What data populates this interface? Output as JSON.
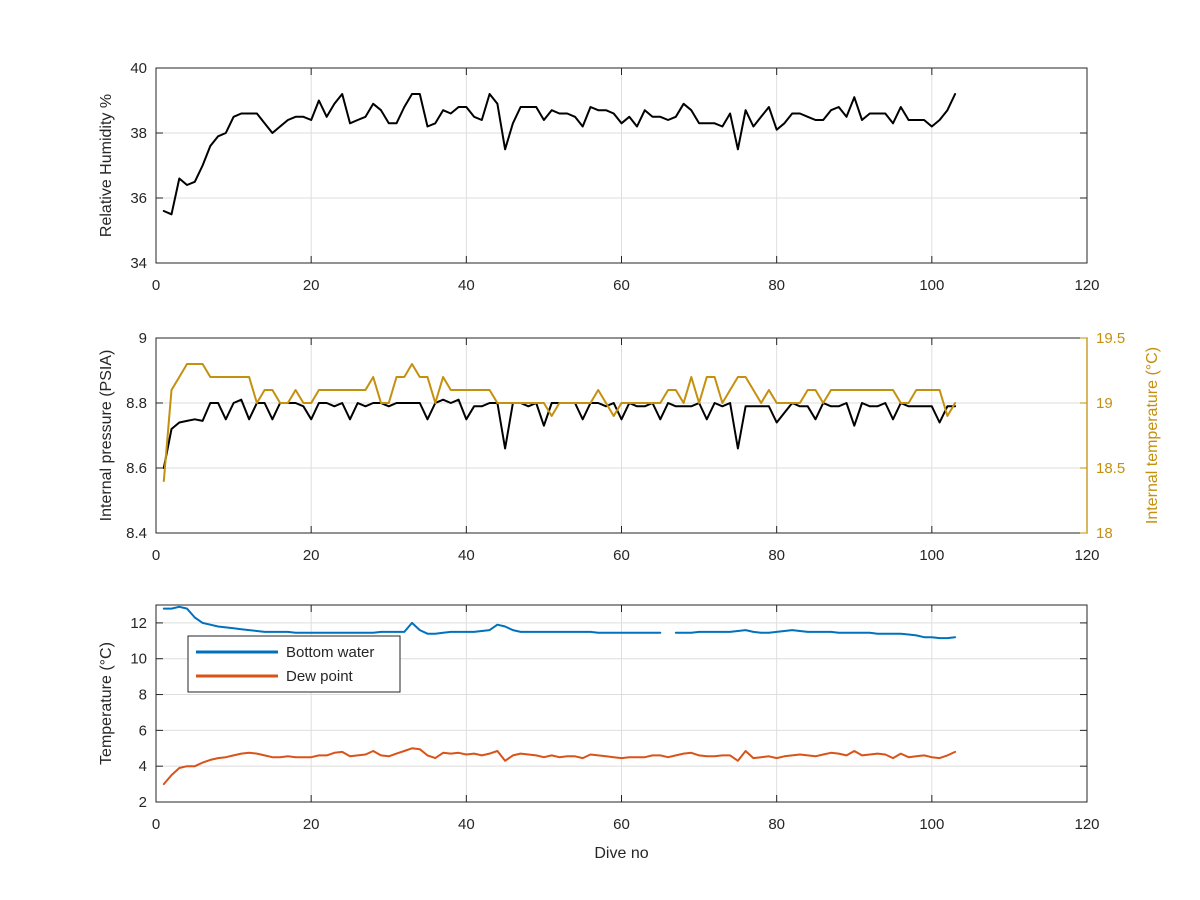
{
  "chart_data": [
    {
      "type": "line",
      "title": "",
      "xlabel": "",
      "ylabel": "Relative Humidity %",
      "xlim": [
        0,
        120
      ],
      "ylim": [
        34,
        40
      ],
      "xticks": [
        0,
        20,
        40,
        60,
        80,
        100,
        120
      ],
      "yticks": [
        34,
        36,
        38,
        40
      ],
      "grid": true,
      "series": [
        {
          "color": "#000000",
          "x": [
            1,
            2,
            3,
            4,
            5,
            6,
            7,
            8,
            9,
            10,
            11,
            12,
            13,
            14,
            15,
            16,
            17,
            18,
            19,
            20,
            21,
            22,
            23,
            24,
            25,
            26,
            27,
            28,
            29,
            30,
            31,
            32,
            33,
            34,
            35,
            36,
            37,
            38,
            39,
            40,
            41,
            42,
            43,
            44,
            45,
            46,
            47,
            48,
            49,
            50,
            51,
            52,
            53,
            54,
            55,
            56,
            57,
            58,
            59,
            60,
            61,
            62,
            63,
            64,
            65,
            66,
            67,
            68,
            69,
            70,
            71,
            72,
            73,
            74,
            75,
            76,
            77,
            78,
            79,
            80,
            81,
            82,
            83,
            84,
            85,
            86,
            87,
            88,
            89,
            90,
            91,
            92,
            93,
            94,
            95,
            96,
            97,
            98,
            99,
            100,
            101,
            102,
            103
          ],
          "values": [
            35.6,
            35.5,
            36.6,
            36.4,
            36.5,
            37.0,
            37.6,
            37.9,
            38.0,
            38.5,
            38.6,
            38.6,
            38.6,
            38.3,
            38.0,
            38.2,
            38.4,
            38.5,
            38.5,
            38.4,
            39.0,
            38.5,
            38.9,
            39.2,
            38.3,
            38.4,
            38.5,
            38.9,
            38.7,
            38.3,
            38.3,
            38.8,
            39.2,
            39.2,
            38.2,
            38.3,
            38.7,
            38.6,
            38.8,
            38.8,
            38.5,
            38.4,
            39.2,
            38.9,
            37.5,
            38.3,
            38.8,
            38.8,
            38.8,
            38.4,
            38.7,
            38.6,
            38.6,
            38.5,
            38.2,
            38.8,
            38.7,
            38.7,
            38.6,
            38.3,
            38.5,
            38.2,
            38.7,
            38.5,
            38.5,
            38.4,
            38.5,
            38.9,
            38.7,
            38.3,
            38.3,
            38.3,
            38.2,
            38.6,
            37.5,
            38.7,
            38.2,
            38.5,
            38.8,
            38.1,
            38.3,
            38.6,
            38.6,
            38.5,
            38.4,
            38.4,
            38.7,
            38.8,
            38.5,
            39.1,
            38.4,
            38.6,
            38.6,
            38.6,
            38.3,
            38.8,
            38.4,
            38.4,
            38.4,
            38.2,
            38.4,
            38.7,
            39.2
          ]
        }
      ]
    },
    {
      "type": "line",
      "title": "",
      "xlabel": "",
      "ylabel": "Internal pressure (PSIA)",
      "y2label": "Internal temperature (°C)",
      "xlim": [
        0,
        120
      ],
      "ylim": [
        8.4,
        9
      ],
      "y2lim": [
        18,
        19.5
      ],
      "xticks": [
        0,
        20,
        40,
        60,
        80,
        100,
        120
      ],
      "yticks": [
        8.4,
        8.6,
        8.8,
        9
      ],
      "y2ticks": [
        18,
        18.5,
        19,
        19.5
      ],
      "y2ticklabels": [
        "18",
        "18.5",
        "19",
        "19.5"
      ],
      "grid": true,
      "series": [
        {
          "axis": "left",
          "color": "#000000",
          "x": [
            1,
            2,
            3,
            4,
            5,
            6,
            7,
            8,
            9,
            10,
            11,
            12,
            13,
            14,
            15,
            16,
            17,
            18,
            19,
            20,
            21,
            22,
            23,
            24,
            25,
            26,
            27,
            28,
            29,
            30,
            31,
            32,
            33,
            34,
            35,
            36,
            37,
            38,
            39,
            40,
            41,
            42,
            43,
            44,
            45,
            46,
            47,
            48,
            49,
            50,
            51,
            52,
            53,
            54,
            55,
            56,
            57,
            58,
            59,
            60,
            61,
            62,
            63,
            64,
            65,
            66,
            67,
            68,
            69,
            70,
            71,
            72,
            73,
            74,
            75,
            76,
            77,
            78,
            79,
            80,
            81,
            82,
            83,
            84,
            85,
            86,
            87,
            88,
            89,
            90,
            91,
            92,
            93,
            94,
            95,
            96,
            97,
            98,
            99,
            100,
            101,
            102,
            103
          ],
          "values": [
            8.6,
            8.72,
            8.74,
            8.745,
            8.75,
            8.745,
            8.8,
            8.8,
            8.75,
            8.8,
            8.81,
            8.75,
            8.8,
            8.8,
            8.75,
            8.8,
            8.8,
            8.8,
            8.79,
            8.75,
            8.8,
            8.8,
            8.79,
            8.8,
            8.75,
            8.8,
            8.79,
            8.8,
            8.8,
            8.79,
            8.8,
            8.8,
            8.8,
            8.8,
            8.75,
            8.8,
            8.81,
            8.8,
            8.81,
            8.75,
            8.79,
            8.79,
            8.8,
            8.8,
            8.66,
            8.8,
            8.8,
            8.79,
            8.8,
            8.73,
            8.8,
            8.8,
            8.8,
            8.8,
            8.75,
            8.8,
            8.8,
            8.79,
            8.8,
            8.75,
            8.8,
            8.79,
            8.79,
            8.8,
            8.75,
            8.8,
            8.79,
            8.79,
            8.79,
            8.8,
            8.75,
            8.8,
            8.79,
            8.8,
            8.66,
            8.79,
            8.79,
            8.79,
            8.79,
            8.74,
            8.77,
            8.8,
            8.79,
            8.79,
            8.75,
            8.8,
            8.79,
            8.79,
            8.8,
            8.73,
            8.8,
            8.79,
            8.79,
            8.8,
            8.75,
            8.8,
            8.79,
            8.79,
            8.79,
            8.79,
            8.74,
            8.79,
            8.79
          ]
        },
        {
          "axis": "right",
          "color": "#c4900e",
          "x": [
            1,
            2,
            3,
            4,
            5,
            6,
            7,
            8,
            9,
            10,
            11,
            12,
            13,
            14,
            15,
            16,
            17,
            18,
            19,
            20,
            21,
            22,
            23,
            24,
            25,
            26,
            27,
            28,
            29,
            30,
            31,
            32,
            33,
            34,
            35,
            36,
            37,
            38,
            39,
            40,
            41,
            42,
            43,
            44,
            45,
            46,
            47,
            48,
            49,
            50,
            51,
            52,
            53,
            54,
            55,
            56,
            57,
            58,
            59,
            60,
            61,
            62,
            63,
            64,
            65,
            66,
            67,
            68,
            69,
            70,
            71,
            72,
            73,
            74,
            75,
            76,
            77,
            78,
            79,
            80,
            81,
            82,
            83,
            84,
            85,
            86,
            87,
            88,
            89,
            90,
            91,
            92,
            93,
            94,
            95,
            96,
            97,
            98,
            99,
            100,
            101,
            102,
            103
          ],
          "values": [
            18.4,
            19.1,
            19.2,
            19.3,
            19.3,
            19.3,
            19.2,
            19.2,
            19.2,
            19.2,
            19.2,
            19.2,
            19.0,
            19.1,
            19.1,
            19.0,
            19.0,
            19.1,
            19.0,
            19.0,
            19.1,
            19.1,
            19.1,
            19.1,
            19.1,
            19.1,
            19.1,
            19.2,
            19.0,
            19.0,
            19.2,
            19.2,
            19.3,
            19.2,
            19.2,
            19.0,
            19.2,
            19.1,
            19.1,
            19.1,
            19.1,
            19.1,
            19.1,
            19.0,
            19.0,
            19.0,
            19.0,
            19.0,
            19.0,
            19.0,
            18.9,
            19.0,
            19.0,
            19.0,
            19.0,
            19.0,
            19.1,
            19.0,
            18.9,
            19.0,
            19.0,
            19.0,
            19.0,
            19.0,
            19.0,
            19.1,
            19.1,
            19.0,
            19.2,
            19.0,
            19.2,
            19.2,
            19.0,
            19.1,
            19.2,
            19.2,
            19.1,
            19.0,
            19.1,
            19.0,
            19.0,
            19.0,
            19.0,
            19.1,
            19.1,
            19.0,
            19.1,
            19.1,
            19.1,
            19.1,
            19.1,
            19.1,
            19.1,
            19.1,
            19.1,
            19.0,
            19.0,
            19.1,
            19.1,
            19.1,
            19.1,
            18.9,
            19.0
          ]
        }
      ]
    },
    {
      "type": "line",
      "title": "",
      "xlabel": "Dive no",
      "ylabel": "Temperature (°C)",
      "xlim": [
        0,
        120
      ],
      "ylim": [
        2,
        13
      ],
      "xticks": [
        0,
        20,
        40,
        60,
        80,
        100,
        120
      ],
      "yticks": [
        2,
        4,
        6,
        8,
        10,
        12
      ],
      "grid": true,
      "legend_location": "top-left",
      "series": [
        {
          "name": "Bottom water",
          "color": "#0072bd",
          "x": [
            1,
            2,
            3,
            4,
            5,
            6,
            7,
            8,
            9,
            10,
            11,
            12,
            13,
            14,
            15,
            16,
            17,
            18,
            19,
            20,
            21,
            22,
            23,
            24,
            25,
            26,
            27,
            28,
            29,
            30,
            31,
            32,
            33,
            34,
            35,
            36,
            37,
            38,
            39,
            40,
            41,
            42,
            43,
            44,
            45,
            46,
            47,
            48,
            49,
            50,
            51,
            52,
            53,
            54,
            55,
            56,
            57,
            58,
            59,
            60,
            61,
            62,
            63,
            64,
            65,
            null,
            67,
            68,
            69,
            70,
            71,
            72,
            73,
            74,
            75,
            76,
            77,
            78,
            79,
            80,
            81,
            82,
            83,
            84,
            85,
            86,
            87,
            88,
            89,
            90,
            91,
            92,
            93,
            94,
            95,
            96,
            97,
            98,
            99,
            100,
            101,
            102,
            103
          ],
          "values": [
            12.8,
            12.8,
            12.9,
            12.8,
            12.3,
            12.0,
            11.9,
            11.8,
            11.75,
            11.7,
            11.65,
            11.6,
            11.55,
            11.5,
            11.5,
            11.5,
            11.5,
            11.45,
            11.45,
            11.45,
            11.45,
            11.45,
            11.45,
            11.45,
            11.45,
            11.45,
            11.45,
            11.45,
            11.5,
            11.5,
            11.5,
            11.5,
            12.0,
            11.6,
            11.4,
            11.4,
            11.45,
            11.5,
            11.5,
            11.5,
            11.5,
            11.55,
            11.6,
            11.9,
            11.8,
            11.6,
            11.5,
            11.5,
            11.5,
            11.5,
            11.5,
            11.5,
            11.5,
            11.5,
            11.5,
            11.5,
            11.45,
            11.45,
            11.45,
            11.45,
            11.45,
            11.45,
            11.45,
            11.45,
            11.45,
            null,
            11.45,
            11.45,
            11.45,
            11.5,
            11.5,
            11.5,
            11.5,
            11.5,
            11.55,
            11.6,
            11.5,
            11.45,
            11.45,
            11.5,
            11.55,
            11.6,
            11.55,
            11.5,
            11.5,
            11.5,
            11.5,
            11.45,
            11.45,
            11.45,
            11.45,
            11.45,
            11.4,
            11.4,
            11.4,
            11.4,
            11.35,
            11.3,
            11.2,
            11.2,
            11.15,
            11.15,
            11.2
          ]
        },
        {
          "name": "Dew point",
          "color": "#d95319",
          "x": [
            1,
            2,
            3,
            4,
            5,
            6,
            7,
            8,
            9,
            10,
            11,
            12,
            13,
            14,
            15,
            16,
            17,
            18,
            19,
            20,
            21,
            22,
            23,
            24,
            25,
            26,
            27,
            28,
            29,
            30,
            31,
            32,
            33,
            34,
            35,
            36,
            37,
            38,
            39,
            40,
            41,
            42,
            43,
            44,
            45,
            46,
            47,
            48,
            49,
            50,
            51,
            52,
            53,
            54,
            55,
            56,
            57,
            58,
            59,
            60,
            61,
            62,
            63,
            64,
            65,
            66,
            67,
            68,
            69,
            70,
            71,
            72,
            73,
            74,
            75,
            76,
            77,
            78,
            79,
            80,
            81,
            82,
            83,
            84,
            85,
            86,
            87,
            88,
            89,
            90,
            91,
            92,
            93,
            94,
            95,
            96,
            97,
            98,
            99,
            100,
            101,
            102,
            103
          ],
          "values": [
            3.0,
            3.5,
            3.9,
            4.0,
            4.0,
            4.2,
            4.35,
            4.45,
            4.5,
            4.6,
            4.7,
            4.75,
            4.7,
            4.6,
            4.5,
            4.5,
            4.55,
            4.5,
            4.5,
            4.5,
            4.6,
            4.6,
            4.75,
            4.8,
            4.55,
            4.6,
            4.65,
            4.85,
            4.6,
            4.55,
            4.7,
            4.85,
            5.0,
            4.95,
            4.6,
            4.45,
            4.75,
            4.7,
            4.75,
            4.65,
            4.7,
            4.6,
            4.7,
            4.85,
            4.3,
            4.6,
            4.7,
            4.65,
            4.6,
            4.5,
            4.6,
            4.5,
            4.55,
            4.55,
            4.45,
            4.65,
            4.6,
            4.55,
            4.5,
            4.45,
            4.5,
            4.5,
            4.5,
            4.6,
            4.6,
            4.5,
            4.6,
            4.7,
            4.75,
            4.6,
            4.55,
            4.55,
            4.6,
            4.6,
            4.3,
            4.85,
            4.45,
            4.5,
            4.55,
            4.45,
            4.55,
            4.6,
            4.65,
            4.6,
            4.55,
            4.65,
            4.75,
            4.7,
            4.6,
            4.85,
            4.6,
            4.65,
            4.7,
            4.65,
            4.45,
            4.7,
            4.5,
            4.55,
            4.6,
            4.5,
            4.45,
            4.6,
            4.8
          ]
        }
      ]
    }
  ]
}
